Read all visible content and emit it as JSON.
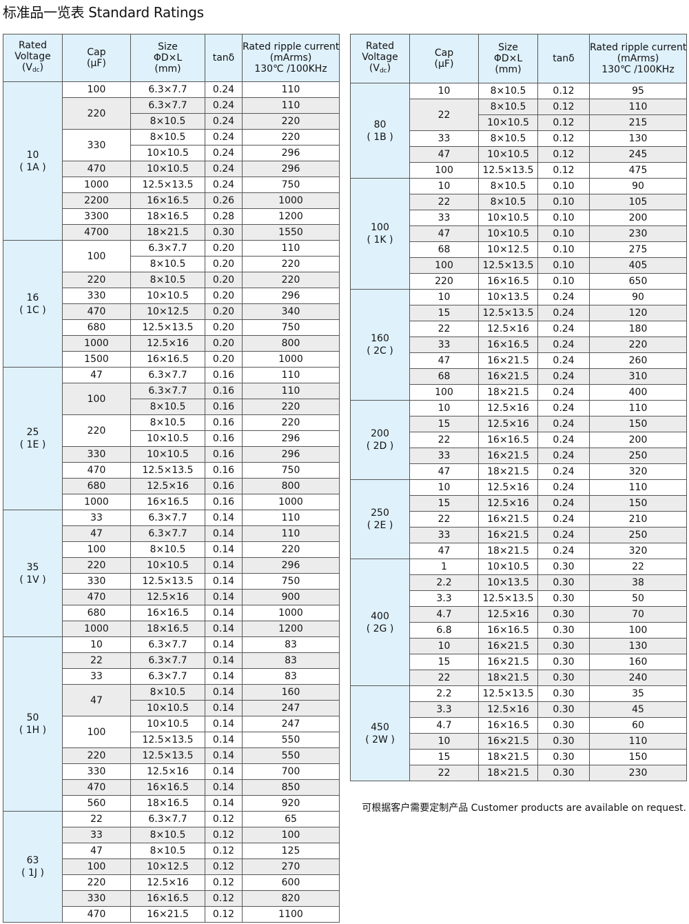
{
  "title": "标准品一览表  Standard Ratings",
  "header": {
    "voltage": [
      "Rated",
      "Voltage",
      "(V",
      "dc",
      ")"
    ],
    "cap": [
      "Cap",
      "(μF)"
    ],
    "size": [
      "Size",
      "ΦD×L",
      "(mm)"
    ],
    "tan": "tanδ",
    "ripple": [
      "Rated ripple current",
      "(mArms)",
      "130℃ /100KHz"
    ]
  },
  "colors": {
    "header_bg": "#dff1fb",
    "stripe": "#ececec",
    "border": "#555555"
  },
  "tables": [
    [
      {
        "voltage": "10",
        "code": "( 1A )",
        "rows": [
          [
            "100",
            "6.3×7.7",
            "0.24",
            "110"
          ],
          [
            "220",
            "6.3×7.7",
            "0.24",
            "110"
          ],
          [
            "220",
            "8×10.5",
            "0.24",
            "220"
          ],
          [
            "330",
            "8×10.5",
            "0.24",
            "220"
          ],
          [
            "330",
            "10×10.5",
            "0.24",
            "296"
          ],
          [
            "470",
            "10×10.5",
            "0.24",
            "296"
          ],
          [
            "1000",
            "12.5×13.5",
            "0.24",
            "750"
          ],
          [
            "2200",
            "16×16.5",
            "0.26",
            "1000"
          ],
          [
            "3300",
            "18×16.5",
            "0.28",
            "1200"
          ],
          [
            "4700",
            "18×21.5",
            "0.30",
            "1550"
          ]
        ]
      },
      {
        "voltage": "16",
        "code": "( 1C )",
        "rows": [
          [
            "100",
            "6.3×7.7",
            "0.20",
            "110"
          ],
          [
            "100",
            "8×10.5",
            "0.20",
            "220"
          ],
          [
            "220",
            "8×10.5",
            "0.20",
            "220"
          ],
          [
            "330",
            "10×10.5",
            "0.20",
            "296"
          ],
          [
            "470",
            "10×12.5",
            "0.20",
            "340"
          ],
          [
            "680",
            "12.5×13.5",
            "0.20",
            "750"
          ],
          [
            "1000",
            "12.5×16",
            "0.20",
            "800"
          ],
          [
            "1500",
            "16×16.5",
            "0.20",
            "1000"
          ]
        ]
      },
      {
        "voltage": "25",
        "code": "( 1E )",
        "rows": [
          [
            "47",
            "6.3×7.7",
            "0.16",
            "110"
          ],
          [
            "100",
            "6.3×7.7",
            "0.16",
            "110"
          ],
          [
            "100",
            "8×10.5",
            "0.16",
            "220"
          ],
          [
            "220",
            "8×10.5",
            "0.16",
            "220"
          ],
          [
            "220",
            "10×10.5",
            "0.16",
            "296"
          ],
          [
            "330",
            "10×10.5",
            "0.16",
            "296"
          ],
          [
            "470",
            "12.5×13.5",
            "0.16",
            "750"
          ],
          [
            "680",
            "12.5×16",
            "0.16",
            "800"
          ],
          [
            "1000",
            "16×16.5",
            "0.16",
            "1000"
          ]
        ]
      },
      {
        "voltage": "35",
        "code": "( 1V )",
        "rows": [
          [
            "33",
            "6.3×7.7",
            "0.14",
            "110"
          ],
          [
            "47",
            "6.3×7.7",
            "0.14",
            "110"
          ],
          [
            "100",
            "8×10.5",
            "0.14",
            "220"
          ],
          [
            "220",
            "10×10.5",
            "0.14",
            "296"
          ],
          [
            "330",
            "12.5×13.5",
            "0.14",
            "750"
          ],
          [
            "470",
            "12.5×16",
            "0.14",
            "900"
          ],
          [
            "680",
            "16×16.5",
            "0.14",
            "1000"
          ],
          [
            "1000",
            "18×16.5",
            "0.14",
            "1200"
          ]
        ]
      },
      {
        "voltage": "50",
        "code": "( 1H )",
        "rows": [
          [
            "10",
            "6.3×7.7",
            "0.14",
            "83"
          ],
          [
            "22",
            "6.3×7.7",
            "0.14",
            "83"
          ],
          [
            "33",
            "6.3×7.7",
            "0.14",
            "83"
          ],
          [
            "47",
            "8×10.5",
            "0.14",
            "160"
          ],
          [
            "47",
            "10×10.5",
            "0.14",
            "247"
          ],
          [
            "100",
            "10×10.5",
            "0.14",
            "247"
          ],
          [
            "100",
            "12.5×13.5",
            "0.14",
            "550"
          ],
          [
            "220",
            "12.5×13.5",
            "0.14",
            "550"
          ],
          [
            "330",
            "12.5×16",
            "0.14",
            "700"
          ],
          [
            "470",
            "16×16.5",
            "0.14",
            "850"
          ],
          [
            "560",
            "18×16.5",
            "0.14",
            "920"
          ]
        ]
      },
      {
        "voltage": "63",
        "code": "( 1J )",
        "rows": [
          [
            "22",
            "6.3×7.7",
            "0.12",
            "65"
          ],
          [
            "33",
            "8×10.5",
            "0.12",
            "100"
          ],
          [
            "47",
            "8×10.5",
            "0.12",
            "125"
          ],
          [
            "100",
            "10×12.5",
            "0.12",
            "270"
          ],
          [
            "220",
            "12.5×16",
            "0.12",
            "600"
          ],
          [
            "330",
            "16×16.5",
            "0.12",
            "820"
          ],
          [
            "470",
            "16×21.5",
            "0.12",
            "1100"
          ]
        ]
      }
    ],
    [
      {
        "voltage": "80",
        "code": "( 1B )",
        "rows": [
          [
            "10",
            "8×10.5",
            "0.12",
            "95"
          ],
          [
            "22",
            "8×10.5",
            "0.12",
            "110"
          ],
          [
            "22",
            "10×10.5",
            "0.12",
            "215"
          ],
          [
            "33",
            "8×10.5",
            "0.12",
            "130"
          ],
          [
            "47",
            "10×10.5",
            "0.12",
            "245"
          ],
          [
            "100",
            "12.5×13.5",
            "0.12",
            "475"
          ]
        ]
      },
      {
        "voltage": "100",
        "code": "( 1K )",
        "rows": [
          [
            "10",
            "8×10.5",
            "0.10",
            "90"
          ],
          [
            "22",
            "8×10.5",
            "0.10",
            "105"
          ],
          [
            "33",
            "10×10.5",
            "0.10",
            "200"
          ],
          [
            "47",
            "10×10.5",
            "0.10",
            "230"
          ],
          [
            "68",
            "10×12.5",
            "0.10",
            "275"
          ],
          [
            "100",
            "12.5×13.5",
            "0.10",
            "405"
          ],
          [
            "220",
            "16×16.5",
            "0.10",
            "650"
          ]
        ]
      },
      {
        "voltage": "160",
        "code": "( 2C )",
        "rows": [
          [
            "10",
            "10×13.5",
            "0.24",
            "90"
          ],
          [
            "15",
            "12.5×13.5",
            "0.24",
            "120"
          ],
          [
            "22",
            "12.5×16",
            "0.24",
            "180"
          ],
          [
            "33",
            "16×16.5",
            "0.24",
            "220"
          ],
          [
            "47",
            "16×21.5",
            "0.24",
            "260"
          ],
          [
            "68",
            "16×21.5",
            "0.24",
            "310"
          ],
          [
            "100",
            "18×21.5",
            "0.24",
            "400"
          ]
        ]
      },
      {
        "voltage": "200",
        "code": "( 2D )",
        "rows": [
          [
            "10",
            "12.5×16",
            "0.24",
            "110"
          ],
          [
            "15",
            "12.5×16",
            "0.24",
            "150"
          ],
          [
            "22",
            "16×16.5",
            "0.24",
            "200"
          ],
          [
            "33",
            "16×21.5",
            "0.24",
            "250"
          ],
          [
            "47",
            "18×21.5",
            "0.24",
            "320"
          ]
        ]
      },
      {
        "voltage": "250",
        "code": "( 2E )",
        "rows": [
          [
            "10",
            "12.5×16",
            "0.24",
            "110"
          ],
          [
            "15",
            "12.5×16",
            "0.24",
            "150"
          ],
          [
            "22",
            "16×21.5",
            "0.24",
            "210"
          ],
          [
            "33",
            "16×21.5",
            "0.24",
            "250"
          ],
          [
            "47",
            "18×21.5",
            "0.24",
            "320"
          ]
        ]
      },
      {
        "voltage": "400",
        "code": "( 2G )",
        "rows": [
          [
            "1",
            "10×10.5",
            "0.30",
            "22"
          ],
          [
            "2.2",
            "10×13.5",
            "0.30",
            "38"
          ],
          [
            "3.3",
            "12.5×13.5",
            "0.30",
            "50"
          ],
          [
            "4.7",
            "12.5×16",
            "0.30",
            "70"
          ],
          [
            "6.8",
            "16×16.5",
            "0.30",
            "100"
          ],
          [
            "10",
            "16×21.5",
            "0.30",
            "130"
          ],
          [
            "15",
            "16×21.5",
            "0.30",
            "160"
          ],
          [
            "22",
            "18×21.5",
            "0.30",
            "240"
          ]
        ]
      },
      {
        "voltage": "450",
        "code": "( 2W )",
        "rows": [
          [
            "2.2",
            "12.5×13.5",
            "0.30",
            "35"
          ],
          [
            "3.3",
            "12.5×16",
            "0.30",
            "45"
          ],
          [
            "4.7",
            "16×16.5",
            "0.30",
            "60"
          ],
          [
            "10",
            "16×21.5",
            "0.30",
            "110"
          ],
          [
            "15",
            "18×21.5",
            "0.30",
            "150"
          ],
          [
            "22",
            "18×21.5",
            "0.30",
            "230"
          ]
        ]
      }
    ]
  ],
  "note": "可根据客户需要定制产品  Customer products are available on request."
}
